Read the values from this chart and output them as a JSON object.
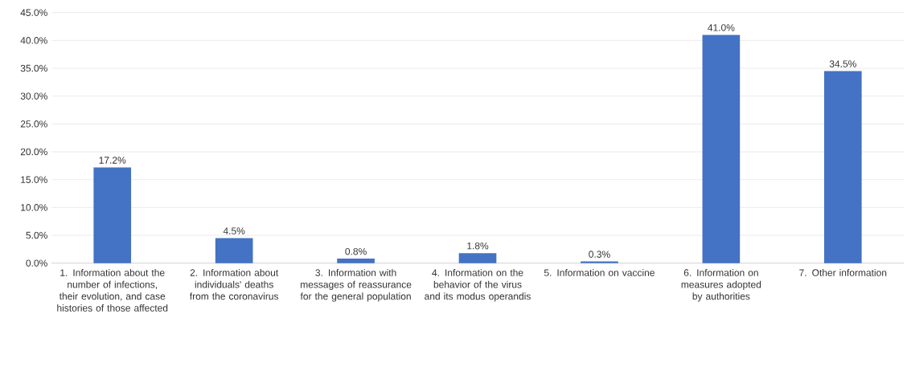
{
  "chart_data": {
    "type": "bar",
    "categories": [
      "1. Information about the number of infections, their evolution, and case histories of those affected",
      "2. Information about individuals' deaths from the coronavirus",
      "3. Information with messages of reassurance for the general population",
      "4. Information on the behavior of the virus and its modus operandis",
      "5. Information on vaccine",
      "6. Information on measures adopted by authorities",
      "7. Other information"
    ],
    "values": [
      17.2,
      4.5,
      0.8,
      1.8,
      0.3,
      41.0,
      34.5
    ],
    "value_labels": [
      "17.2%",
      "4.5%",
      "0.8%",
      "1.8%",
      "0.3%",
      "41.0%",
      "34.5%"
    ],
    "color": "#4472c4",
    "ylim": [
      0,
      45
    ],
    "yticks": [
      {
        "value": 0,
        "label": "0.0%"
      },
      {
        "value": 5,
        "label": "5.0%"
      },
      {
        "value": 10,
        "label": "10.0%"
      },
      {
        "value": 15,
        "label": "15.0%"
      },
      {
        "value": 20,
        "label": "20.0%"
      },
      {
        "value": 25,
        "label": "25.0%"
      },
      {
        "value": 30,
        "label": "30.0%"
      },
      {
        "value": 35,
        "label": "35.0%"
      },
      {
        "value": 40,
        "label": "40.0%"
      },
      {
        "value": 45,
        "label": "45.0%"
      }
    ],
    "grid": "y"
  }
}
